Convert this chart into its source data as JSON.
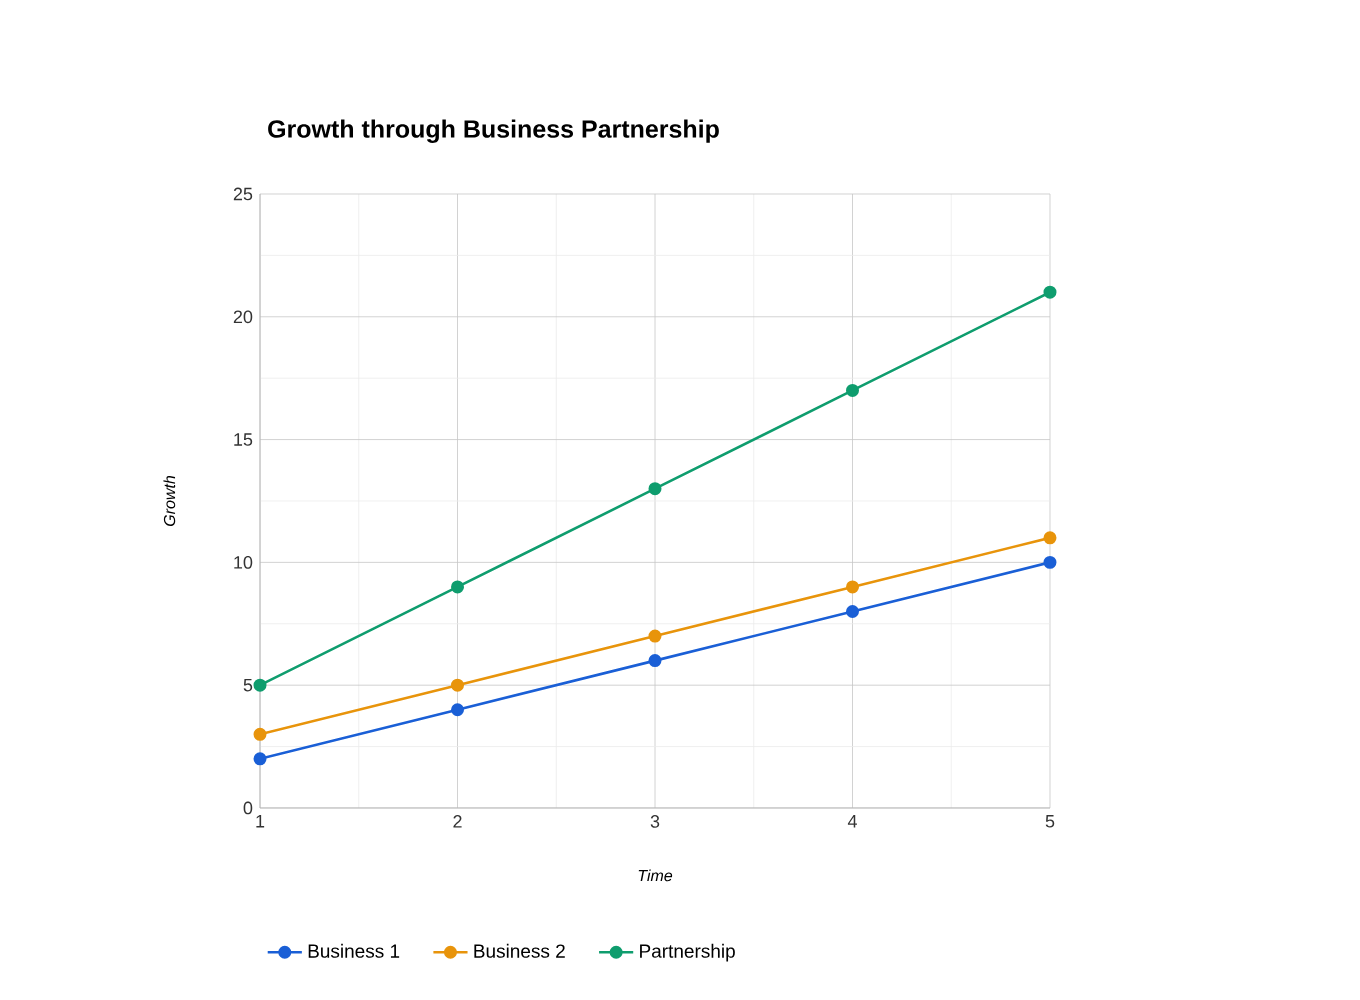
{
  "chart_data": {
    "type": "line",
    "title": "Growth through Business Partnership",
    "xlabel": "Time",
    "ylabel": "Growth",
    "x": [
      1,
      2,
      3,
      4,
      5
    ],
    "series": [
      {
        "name": "Business 1",
        "color": "#1a5fd6",
        "values": [
          2,
          4,
          6,
          8,
          10
        ]
      },
      {
        "name": "Business 2",
        "color": "#e8940b",
        "values": [
          3,
          5,
          7,
          9,
          11
        ]
      },
      {
        "name": "Partnership",
        "color": "#0f9d6e",
        "values": [
          5,
          9,
          13,
          17,
          21
        ]
      }
    ],
    "xlim": [
      1,
      5
    ],
    "xticks": [
      1,
      2,
      3,
      4,
      5
    ],
    "ylim": [
      0,
      25
    ],
    "yticks": [
      0,
      5,
      10,
      15,
      20,
      25
    ],
    "grid": true,
    "legend": "bottom",
    "marker": "circle",
    "line_style": "solid"
  }
}
